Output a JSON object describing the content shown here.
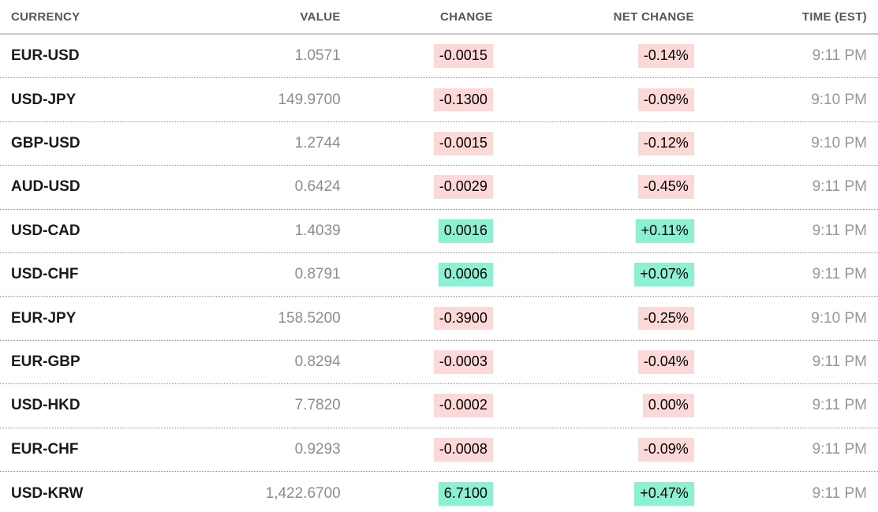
{
  "table": {
    "columns": [
      {
        "label": "CURRENCY",
        "align": "left"
      },
      {
        "label": "VALUE",
        "align": "right"
      },
      {
        "label": "CHANGE",
        "align": "right"
      },
      {
        "label": "NET CHANGE",
        "align": "right"
      },
      {
        "label": "TIME (EST)",
        "align": "right"
      }
    ],
    "rows": [
      {
        "currency": "EUR-USD",
        "value": "1.0571",
        "change": "-0.0015",
        "net_change": "-0.14%",
        "time": "9:11 PM",
        "direction": "down"
      },
      {
        "currency": "USD-JPY",
        "value": "149.9700",
        "change": "-0.1300",
        "net_change": "-0.09%",
        "time": "9:10 PM",
        "direction": "down"
      },
      {
        "currency": "GBP-USD",
        "value": "1.2744",
        "change": "-0.0015",
        "net_change": "-0.12%",
        "time": "9:10 PM",
        "direction": "down"
      },
      {
        "currency": "AUD-USD",
        "value": "0.6424",
        "change": "-0.0029",
        "net_change": "-0.45%",
        "time": "9:11 PM",
        "direction": "down"
      },
      {
        "currency": "USD-CAD",
        "value": "1.4039",
        "change": "0.0016",
        "net_change": "+0.11%",
        "time": "9:11 PM",
        "direction": "up"
      },
      {
        "currency": "USD-CHF",
        "value": "0.8791",
        "change": "0.0006",
        "net_change": "+0.07%",
        "time": "9:11 PM",
        "direction": "up"
      },
      {
        "currency": "EUR-JPY",
        "value": "158.5200",
        "change": "-0.3900",
        "net_change": "-0.25%",
        "time": "9:10 PM",
        "direction": "down"
      },
      {
        "currency": "EUR-GBP",
        "value": "0.8294",
        "change": "-0.0003",
        "net_change": "-0.04%",
        "time": "9:11 PM",
        "direction": "down"
      },
      {
        "currency": "USD-HKD",
        "value": "7.7820",
        "change": "-0.0002",
        "net_change": "0.00%",
        "time": "9:11 PM",
        "direction": "down"
      },
      {
        "currency": "EUR-CHF",
        "value": "0.9293",
        "change": "-0.0008",
        "net_change": "-0.09%",
        "time": "9:11 PM",
        "direction": "down"
      },
      {
        "currency": "USD-KRW",
        "value": "1,422.6700",
        "change": "6.7100",
        "net_change": "+0.47%",
        "time": "9:11 PM",
        "direction": "up"
      }
    ]
  },
  "colors": {
    "negative_badge_bg": "#fcd8d6",
    "positive_badge_bg": "#8cf0d2",
    "currency_text": "#1a1a1a",
    "muted_text": "#8d8d8d",
    "header_text": "#565656"
  }
}
